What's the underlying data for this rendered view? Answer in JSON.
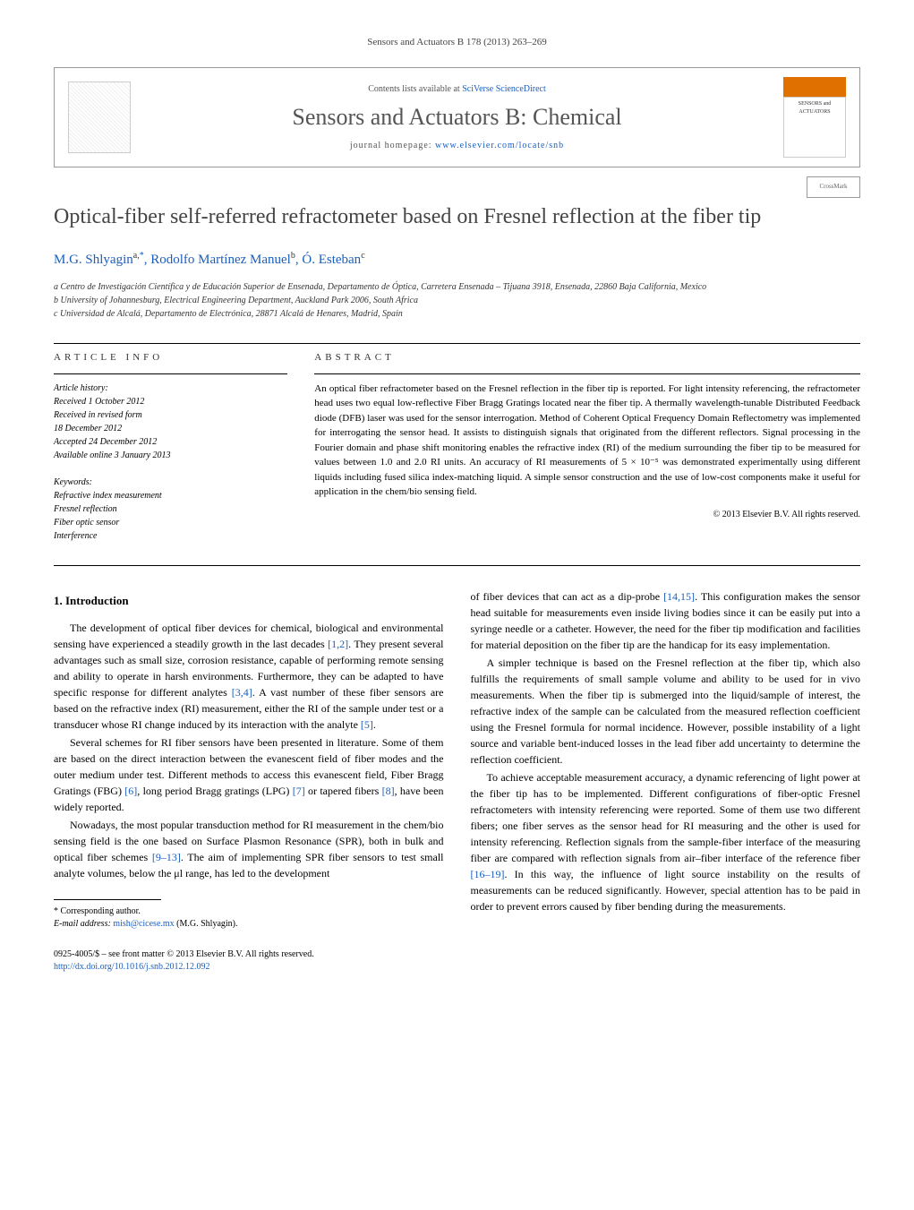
{
  "journal_ref": "Sensors and Actuators B 178 (2013) 263–269",
  "header": {
    "contents_prefix": "Contents lists available at ",
    "contents_link": "SciVerse ScienceDirect",
    "journal_title": "Sensors and Actuators B: Chemical",
    "homepage_prefix": "journal homepage: ",
    "homepage_link": "www.elsevier.com/locate/snb",
    "cover_label": "SENSORS and ACTUATORS"
  },
  "crossmark": "CrossMark",
  "title": "Optical-fiber self-referred refractometer based on Fresnel reflection at the fiber tip",
  "authors_html": "M.G. Shlyagin",
  "author_a_sup": "a,",
  "author_a_star": "*",
  "author_b": ", Rodolfo Martínez Manuel",
  "author_b_sup": "b",
  "author_c": ", Ó. Esteban",
  "author_c_sup": "c",
  "affiliations": {
    "a": "a Centro de Investigación Científica y de Educación Superior de Ensenada, Departamento de Óptica, Carretera Ensenada – Tijuana 3918, Ensenada, 22860 Baja California, Mexico",
    "b": "b University of Johannesburg, Electrical Engineering Department, Auckland Park 2006, South Africa",
    "c": "c Universidad de Alcalá, Departamento de Electrónica, 28871 Alcalá de Henares, Madrid, Spain"
  },
  "info_label": "article info",
  "abs_label": "abstract",
  "history": {
    "head": "Article history:",
    "received": "Received 1 October 2012",
    "revised1": "Received in revised form",
    "revised2": "18 December 2012",
    "accepted": "Accepted 24 December 2012",
    "online": "Available online 3 January 2013"
  },
  "keywords": {
    "head": "Keywords:",
    "k1": "Refractive index measurement",
    "k2": "Fresnel reflection",
    "k3": "Fiber optic sensor",
    "k4": "Interference"
  },
  "abstract": "An optical fiber refractometer based on the Fresnel reflection in the fiber tip is reported. For light intensity referencing, the refractometer head uses two equal low-reflective Fiber Bragg Gratings located near the fiber tip. A thermally wavelength-tunable Distributed Feedback diode (DFB) laser was used for the sensor interrogation. Method of Coherent Optical Frequency Domain Reflectometry was implemented for interrogating the sensor head. It assists to distinguish signals that originated from the different reflectors. Signal processing in the Fourier domain and phase shift monitoring enables the refractive index (RI) of the medium surrounding the fiber tip to be measured for values between 1.0 and 2.0 RI units. An accuracy of RI measurements of 5 × 10⁻⁵ was demonstrated experimentally using different liquids including fused silica index-matching liquid. A simple sensor construction and the use of low-cost components make it useful for application in the chem/bio sensing field.",
  "copyright": "© 2013 Elsevier B.V. All rights reserved.",
  "body": {
    "h1": "1. Introduction",
    "p1a": "The development of optical fiber devices for chemical, biological and environmental sensing have experienced a steadily growth in the last decades ",
    "p1_ref1": "[1,2]",
    "p1b": ". They present several advantages such as small size, corrosion resistance, capable of performing remote sensing and ability to operate in harsh environments. Furthermore, they can be adapted to have specific response for different analytes ",
    "p1_ref2": "[3,4]",
    "p1c": ". A vast number of these fiber sensors are based on the refractive index (RI) measurement, either the RI of the sample under test or a transducer whose RI change induced by its interaction with the analyte ",
    "p1_ref3": "[5]",
    "p1d": ".",
    "p2a": "Several schemes for RI fiber sensors have been presented in literature. Some of them are based on the direct interaction between the evanescent field of fiber modes and the outer medium under test. Different methods to access this evanescent field, Fiber Bragg Gratings (FBG) ",
    "p2_ref1": "[6]",
    "p2b": ", long period Bragg gratings (LPG) ",
    "p2_ref2": "[7]",
    "p2c": " or tapered fibers ",
    "p2_ref3": "[8]",
    "p2d": ", have been widely reported.",
    "p3a": "Nowadays, the most popular transduction method for RI measurement in the chem/bio sensing field is the one based on Surface Plasmon Resonance (SPR), both in bulk and optical fiber schemes ",
    "p3_ref1": "[9–13]",
    "p3b": ". The aim of implementing SPR fiber sensors to test small analyte volumes, below the μl range, has led to the development",
    "p4a": "of fiber devices that can act as a dip-probe ",
    "p4_ref1": "[14,15]",
    "p4b": ". This configuration makes the sensor head suitable for measurements even inside living bodies since it can be easily put into a syringe needle or a catheter. However, the need for the fiber tip modification and facilities for material deposition on the fiber tip are the handicap for its easy implementation.",
    "p5": "A simpler technique is based on the Fresnel reflection at the fiber tip, which also fulfills the requirements of small sample volume and ability to be used for in vivo measurements. When the fiber tip is submerged into the liquid/sample of interest, the refractive index of the sample can be calculated from the measured reflection coefficient using the Fresnel formula for normal incidence. However, possible instability of a light source and variable bent-induced losses in the lead fiber add uncertainty to determine the reflection coefficient.",
    "p6a": "To achieve acceptable measurement accuracy, a dynamic referencing of light power at the fiber tip has to be implemented. Different configurations of fiber-optic Fresnel refractometers with intensity referencing were reported. Some of them use two different fibers; one fiber serves as the sensor head for RI measuring and the other is used for intensity referencing. Reflection signals from the sample-fiber interface of the measuring fiber are compared with reflection signals from air–fiber interface of the reference fiber ",
    "p6_ref1": "[16–19]",
    "p6b": ". In this way, the influence of light source instability on the results of measurements can be reduced significantly. However, special attention has to be paid in order to prevent errors caused by fiber bending during the measurements."
  },
  "footnote": {
    "corr": "* Corresponding author.",
    "email_label": "E-mail address: ",
    "email": "mish@cicese.mx",
    "email_tail": " (M.G. Shlyagin)."
  },
  "footer": {
    "line1": "0925-4005/$ – see front matter © 2013 Elsevier B.V. All rights reserved.",
    "doi": "http://dx.doi.org/10.1016/j.snb.2012.12.092"
  },
  "colors": {
    "link": "#1a5fbf",
    "accent": "#e07000",
    "title_gray": "#555555"
  }
}
